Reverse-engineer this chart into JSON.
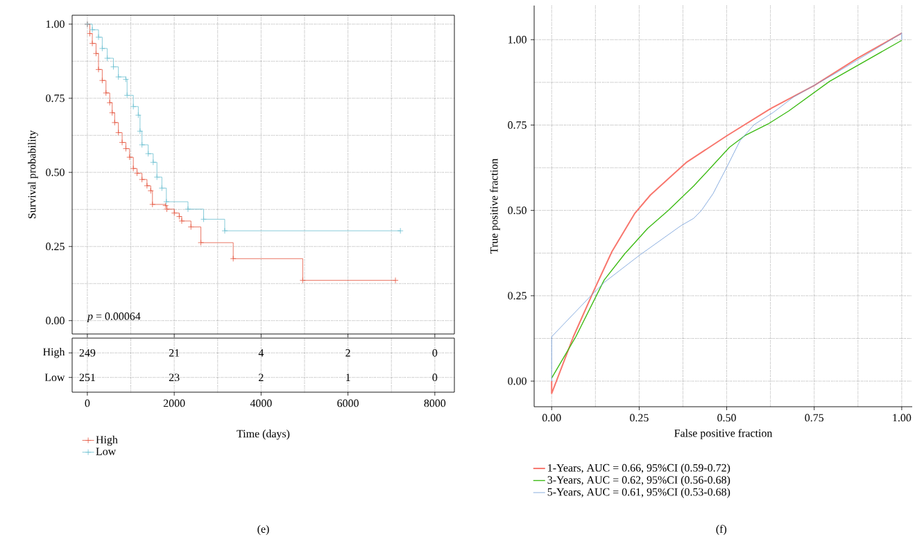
{
  "chart_data": [
    {
      "type": "step",
      "xlabel": "Time (days)",
      "ylabel": "Survival probability",
      "annotations": [
        "*p* = 0.00064",
        "(e)"
      ],
      "xlim": [
        -350,
        8450
      ],
      "ylim": [
        -0.045,
        1.03
      ],
      "xticks": [
        0,
        2000,
        4000,
        6000,
        8000
      ],
      "yticks": [
        {
          "value": 0,
          "label": "0.00"
        },
        {
          "value": 0.25,
          "label": "0.25"
        },
        {
          "value": 0.5,
          "label": "0.50"
        },
        {
          "value": 0.75,
          "label": "0.75"
        },
        {
          "value": 1,
          "label": "1.00"
        }
      ],
      "grid": true,
      "legend": "bottom left",
      "marker": "cross",
      "series": [
        {
          "name": "High",
          "color": "#e4553f",
          "x": [
            0,
            57,
            114,
            200,
            257,
            343,
            429,
            515,
            572,
            629,
            715,
            801,
            887,
            972,
            1058,
            1144,
            1258,
            1373,
            1459,
            1499,
            1802,
            1830,
            2002,
            2116,
            2173,
            2385,
            2614,
            3358,
            4959,
            7093
          ],
          "values": [
            1.0,
            0.968,
            0.935,
            0.901,
            0.847,
            0.81,
            0.768,
            0.735,
            0.701,
            0.668,
            0.634,
            0.601,
            0.58,
            0.551,
            0.513,
            0.497,
            0.476,
            0.455,
            0.438,
            0.392,
            0.388,
            0.376,
            0.363,
            0.351,
            0.336,
            0.316,
            0.263,
            0.209,
            0.136,
            0.136
          ]
        },
        {
          "name": "Low",
          "color": "#6bbfd0",
          "x": [
            0,
            114,
            257,
            343,
            458,
            600,
            715,
            887,
            915,
            1058,
            1173,
            1213,
            1258,
            1401,
            1516,
            1602,
            1716,
            1819,
            2317,
            2677,
            3163,
            7207
          ],
          "values": [
            1.0,
            0.981,
            0.956,
            0.918,
            0.885,
            0.856,
            0.822,
            0.814,
            0.76,
            0.722,
            0.693,
            0.639,
            0.593,
            0.563,
            0.534,
            0.484,
            0.447,
            0.401,
            0.376,
            0.342,
            0.303,
            0.303
          ]
        }
      ]
    },
    {
      "type": "heatmap",
      "categories": [
        null,
        null,
        null,
        null,
        null
      ],
      "y_categories": [
        "High",
        "Low"
      ],
      "data_labels": true,
      "cells": [
        [
          249,
          21,
          4,
          2,
          0
        ],
        [
          251,
          23,
          2,
          1,
          0
        ]
      ]
    },
    {
      "type": "line",
      "xlabel": "False positive fraction",
      "ylabel": "True positive fraction",
      "annotations": [
        "(f)"
      ],
      "xlim": [
        -0.05,
        1.03
      ],
      "ylim": [
        -0.075,
        1.1
      ],
      "xticks": [
        {
          "value": 0,
          "label": "0.00"
        },
        {
          "value": 0.25,
          "label": "0.25"
        },
        {
          "value": 0.5,
          "label": "0.50"
        },
        {
          "value": 0.75,
          "label": "0.75"
        },
        {
          "value": 1,
          "label": "1.00"
        }
      ],
      "yticks": [
        {
          "value": 0,
          "label": "0.00"
        },
        {
          "value": 0.25,
          "label": "0.25"
        },
        {
          "value": 0.5,
          "label": "0.50"
        },
        {
          "value": 0.75,
          "label": "0.75"
        },
        {
          "value": 1,
          "label": "1.00"
        }
      ],
      "grid": true,
      "legend": "bottom",
      "series": [
        {
          "name": "1-Years, AUC = 0.66, 95%CI (0.59-0.72)",
          "color": "#f8766d",
          "x": [
            0,
            0,
            0.062,
            0.121,
            0.172,
            0.238,
            0.282,
            0.384,
            0.501,
            0.625,
            0.75,
            0.874,
            1.0
          ],
          "values": [
            0,
            -0.036,
            0.13,
            0.266,
            0.379,
            0.492,
            0.545,
            0.64,
            0.719,
            0.798,
            0.866,
            0.946,
            1.019
          ]
        },
        {
          "name": "3-Years, AUC = 0.62, 95%CI (0.56-0.68)",
          "color": "#3dbb15",
          "x": [
            0,
            0.069,
            0.15,
            0.208,
            0.274,
            0.333,
            0.406,
            0.457,
            0.508,
            0.552,
            0.618,
            0.677,
            0.794,
            1.0
          ],
          "values": [
            0.009,
            0.13,
            0.296,
            0.372,
            0.447,
            0.5,
            0.572,
            0.628,
            0.685,
            0.719,
            0.753,
            0.791,
            0.878,
            0.998
          ]
        },
        {
          "name": "5-Years, AUC = 0.61, 95%CI (0.53-0.68)",
          "color": "#6f9ad8",
          "x": [
            0,
            0,
            0.113,
            0.15,
            0.25,
            0.369,
            0.406,
            0.428,
            0.461,
            0.501,
            0.538,
            0.578,
            0.633,
            0.691,
            0.808,
            1.0,
            1.0
          ],
          "values": [
            0,
            0.13,
            0.251,
            0.289,
            0.368,
            0.455,
            0.477,
            0.5,
            0.549,
            0.628,
            0.704,
            0.751,
            0.787,
            0.832,
            0.9,
            1.019,
            1.0
          ]
        }
      ]
    }
  ]
}
